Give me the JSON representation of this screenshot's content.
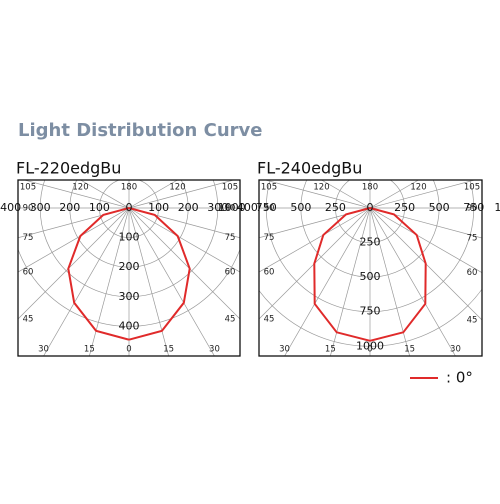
{
  "header": {
    "title": "Light Distribution Curve"
  },
  "chart_data": [
    {
      "type": "polar",
      "title": "FL-220edgBu",
      "x": [
        0,
        15,
        30,
        45,
        60,
        75,
        90
      ],
      "series": [
        {
          "name": ": 0°",
          "color": "#e02a2a",
          "values": [
            445,
            430,
            370,
            290,
            190,
            90,
            0
          ]
        }
      ],
      "rlim": [
        0,
        500
      ],
      "rticks": [
        0,
        100,
        200,
        300,
        400
      ],
      "angle_ticks": [
        0,
        15,
        30,
        45,
        60,
        75,
        90,
        105,
        120,
        180
      ]
    },
    {
      "type": "polar",
      "title": "FL-240edgBu",
      "x": [
        0,
        15,
        30,
        45,
        60,
        75,
        90
      ],
      "series": [
        {
          "color": "#e02a2a",
          "values": [
            960,
            930,
            800,
            570,
            390,
            180,
            0
          ]
        }
      ],
      "rlim": [
        0,
        1070
      ],
      "rticks": [
        0,
        250,
        500,
        750,
        1000
      ],
      "angle_ticks": [
        0,
        15,
        30,
        45,
        60,
        75,
        90,
        105,
        120,
        180
      ]
    }
  ]
}
